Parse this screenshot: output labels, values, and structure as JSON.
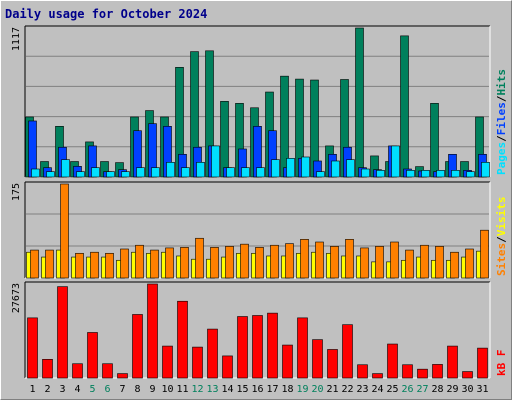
{
  "chart_data": {
    "type": "bar",
    "title": "Daily usage for October 2024",
    "categories": [
      "1",
      "2",
      "3",
      "4",
      "5",
      "6",
      "7",
      "8",
      "9",
      "10",
      "11",
      "12",
      "13",
      "14",
      "15",
      "16",
      "17",
      "18",
      "19",
      "20",
      "21",
      "22",
      "23",
      "24",
      "25",
      "26",
      "27",
      "28",
      "29",
      "30",
      "31"
    ],
    "weekend_days": [
      "5",
      "6",
      "12",
      "13",
      "19",
      "20",
      "26",
      "27"
    ],
    "colors": {
      "hits": "#00805c",
      "files": "#0040ff",
      "pages": "#00e0ff",
      "visits": "#ffff00",
      "sites": "#ff8000",
      "kbf": "#ff0000",
      "weekday_label": "#000000",
      "weekend_label": "#00805c",
      "title": "#00008b"
    },
    "panels": [
      {
        "id": "hits-files-pages",
        "max_label": "1117",
        "ylim": [
          0,
          1117
        ],
        "legend": [
          {
            "text": "Pages",
            "color": "#00e0ff"
          },
          {
            "text": "/",
            "color": "#000000"
          },
          {
            "text": "Files",
            "color": "#0040ff"
          },
          {
            "text": "/",
            "color": "#000000"
          },
          {
            "text": "Hits",
            "color": "#00805c"
          }
        ],
        "series": [
          {
            "name": "Hits",
            "key": "hits",
            "values": [
              450,
              116,
              380,
              116,
              263,
              116,
              108,
              450,
              498,
              450,
              822,
              940,
              946,
              567,
              552,
              519,
              637,
              756,
              734,
              727,
              233,
              731,
              1117,
              158,
              116,
              1058,
              78,
              552,
              116,
              116,
              450
            ]
          },
          {
            "name": "Files",
            "key": "files",
            "values": [
              420,
              70,
              223,
              80,
              233,
              40,
              55,
              347,
              400,
              380,
              170,
              223,
              233,
              70,
              210,
              380,
              347,
              70,
              140,
              120,
              170,
              223,
              70,
              55,
              233,
              60,
              45,
              40,
              170,
              50,
              170
            ]
          },
          {
            "name": "Pages",
            "key": "pages",
            "values": [
              60,
              40,
              130,
              40,
              70,
              40,
              40,
              70,
              70,
              110,
              70,
              110,
              233,
              70,
              70,
              70,
              130,
              140,
              150,
              40,
              120,
              130,
              60,
              50,
              233,
              50,
              50,
              50,
              50,
              40,
              110
            ]
          }
        ]
      },
      {
        "id": "visits-sites",
        "max_label": "175",
        "ylim": [
          0,
          175
        ],
        "legend": [
          {
            "text": "Sites",
            "color": "#ff8000"
          },
          {
            "text": "/",
            "color": "#000000"
          },
          {
            "text": "Visits",
            "color": "#ffff00"
          }
        ],
        "series": [
          {
            "name": "Visits",
            "key": "visits",
            "values": [
              48,
              39,
              52,
              39,
              39,
              39,
              33,
              48,
              46,
              48,
              41,
              35,
              35,
              39,
              46,
              46,
              41,
              41,
              46,
              48,
              46,
              41,
              41,
              30,
              30,
              33,
              39,
              33,
              33,
              39,
              50
            ]
          },
          {
            "name": "Sites",
            "key": "sites",
            "values": [
              52,
              52,
              175,
              46,
              48,
              46,
              54,
              61,
              52,
              56,
              57,
              74,
              57,
              59,
              63,
              57,
              61,
              64,
              72,
              67,
              59,
              72,
              56,
              59,
              67,
              52,
              61,
              59,
              48,
              54,
              89
            ]
          }
        ]
      },
      {
        "id": "kbf",
        "max_label": "27673",
        "ylim": [
          0,
          27673
        ],
        "legend": [
          {
            "text": "kB F",
            "color": "#ff0000"
          }
        ],
        "series": [
          {
            "name": "kB F",
            "key": "kbf",
            "values": [
              17700,
              5500,
              26900,
              4200,
              13400,
              4200,
              1300,
              18700,
              27673,
              9400,
              22600,
              9100,
              14400,
              6500,
              18100,
              18400,
              19100,
              9700,
              17700,
              11300,
              8400,
              15700,
              3900,
              1300,
              10000,
              3900,
              2600,
              4000,
              9400,
              1900,
              8800
            ]
          }
        ]
      }
    ]
  }
}
